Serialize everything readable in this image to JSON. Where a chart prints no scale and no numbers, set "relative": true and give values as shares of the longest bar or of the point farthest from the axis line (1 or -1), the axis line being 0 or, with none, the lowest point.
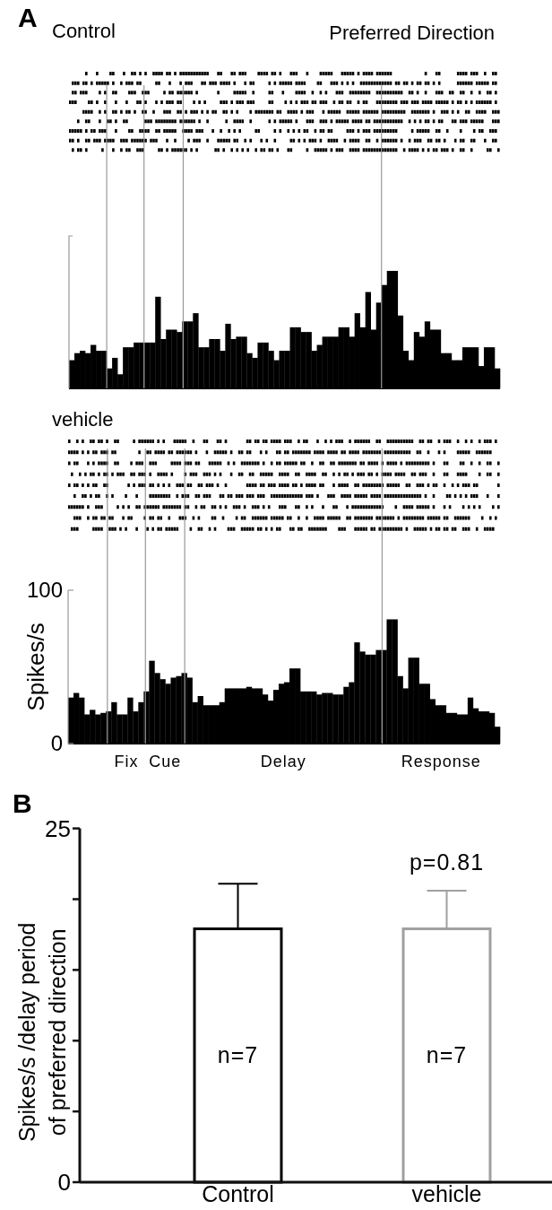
{
  "chart_data": [
    {
      "type": "bar",
      "title": "Control",
      "subtitle": "Preferred Direction",
      "annotations": [
        "A"
      ],
      "relative": true,
      "tick_labels": false,
      "color": "#000000",
      "categories": [
        null,
        null,
        null,
        null,
        null,
        null,
        null,
        null,
        null,
        null,
        null,
        null,
        null,
        null,
        null,
        null,
        null,
        null,
        null,
        null,
        null,
        null,
        null,
        null,
        null,
        null,
        null,
        null,
        null,
        null,
        null,
        null,
        null,
        null,
        null,
        null,
        null,
        null,
        null,
        null,
        null,
        null,
        null,
        null,
        null,
        null,
        null,
        null,
        null,
        null,
        null,
        null,
        null,
        null,
        null,
        null,
        null,
        null,
        null,
        null,
        null,
        null,
        null,
        null,
        null,
        null,
        null,
        null,
        null,
        null,
        null,
        null,
        null,
        null,
        null,
        null,
        null,
        null,
        null,
        null
      ],
      "values": [
        0.24,
        0.3,
        0.32,
        0.3,
        0.37,
        0.32,
        0.32,
        0.17,
        0.26,
        0.12,
        0.35,
        0.35,
        0.39,
        0.39,
        0.39,
        0.39,
        0.78,
        0.42,
        0.5,
        0.5,
        0.48,
        0.57,
        0.57,
        0.64,
        0.35,
        0.35,
        0.42,
        0.42,
        0.32,
        0.55,
        0.42,
        0.44,
        0.44,
        0.3,
        0.26,
        0.39,
        0.39,
        0.32,
        0.24,
        0.32,
        0.32,
        0.52,
        0.52,
        0.48,
        0.48,
        0.32,
        0.37,
        0.44,
        0.44,
        0.44,
        0.52,
        0.52,
        0.44,
        0.64,
        0.52,
        0.82,
        0.5,
        0.73,
        0.88,
        1,
        1,
        0.62,
        0.32,
        0.24,
        0.48,
        0.44,
        0.57,
        0.5,
        0.5,
        0.3,
        0.3,
        0.24,
        0.24,
        0.35,
        0.35,
        0.35,
        0.19,
        0.35,
        0.35,
        0.17
      ]
    },
    {
      "type": "bar",
      "title": "vehicle",
      "ylabel": "Spikes/s",
      "tick_labels": "y",
      "color": "#000000",
      "ylim": [
        0,
        100
      ],
      "yticks": [
        0,
        100
      ],
      "categories": [
        null,
        null,
        null,
        null,
        null,
        null,
        null,
        null,
        null,
        null,
        null,
        null,
        null,
        null,
        null,
        null,
        null,
        null,
        null,
        null,
        null,
        null,
        null,
        null,
        null,
        null,
        null,
        null,
        null,
        null,
        null,
        null,
        null,
        null,
        null,
        null,
        null,
        null,
        null,
        null,
        null,
        null,
        null,
        null,
        null,
        null,
        null,
        null,
        null,
        null,
        null,
        null,
        null,
        null,
        null,
        null,
        null,
        null,
        null,
        null,
        null,
        null,
        null,
        null,
        null,
        null,
        null,
        null,
        null,
        null,
        null,
        null,
        null,
        null,
        null,
        null,
        null,
        null,
        null,
        null
      ],
      "values": [
        30,
        33,
        30,
        19,
        22,
        19,
        20,
        21,
        27,
        19,
        19,
        30,
        21,
        27,
        34,
        54,
        46,
        42,
        39,
        43,
        44,
        46,
        43,
        27,
        31,
        25,
        25,
        25,
        27,
        36,
        36,
        36,
        36,
        37,
        36,
        36,
        32,
        28,
        35,
        39,
        40,
        49,
        49,
        34,
        34,
        34,
        32,
        33,
        33,
        32,
        32,
        37,
        40,
        66,
        60,
        58,
        58,
        61,
        61,
        81,
        81,
        44,
        36,
        56,
        56,
        39,
        39,
        29,
        25,
        25,
        20,
        20,
        19,
        19,
        30,
        23,
        21,
        21,
        20,
        11
      ],
      "annotations": [
        "Fix",
        "Cue",
        "Delay",
        "Response"
      ]
    },
    {
      "type": "bar",
      "title": "B",
      "ylabel": "Spikes/s /delay period of preferred direction",
      "categories": [
        "Control",
        "vehicle"
      ],
      "values": [
        18,
        18
      ],
      "colors": [
        "#000000",
        "#a0a0a0"
      ],
      "errors": [
        [
          18,
          21.1
        ],
        [
          18,
          20.6
        ]
      ],
      "ylim": [
        0,
        25
      ],
      "yticks": [
        0,
        {
          "value": 5,
          "label": null
        },
        {
          "value": 10,
          "label": null
        },
        {
          "value": 15,
          "label": null
        },
        {
          "value": 20,
          "label": null
        },
        25
      ],
      "annotations": [
        {
          "text": "p=0.81",
          "x": "vehicle",
          "y": 20.6
        },
        "n=7",
        "n=7"
      ]
    }
  ]
}
